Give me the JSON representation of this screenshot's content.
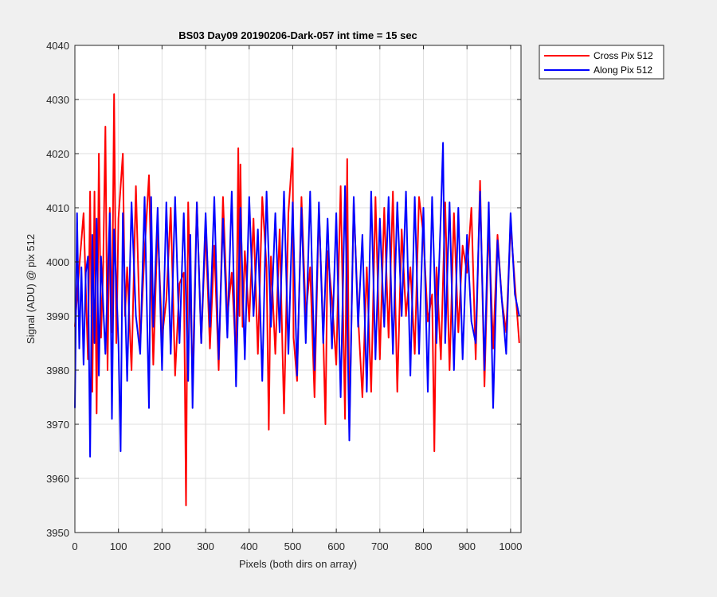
{
  "chart_data": {
    "type": "line",
    "title": "BS03 Day09 20190206-Dark-057 int time = 15 sec",
    "xlabel": "Pixels (both dirs on array)",
    "ylabel": "Signal (ADU) @ pix 512",
    "xlim": [
      0,
      1024
    ],
    "ylim": [
      3950,
      4040
    ],
    "xticks": [
      0,
      100,
      200,
      300,
      400,
      500,
      600,
      700,
      800,
      900,
      1000
    ],
    "yticks": [
      3950,
      3960,
      3970,
      3980,
      3990,
      4000,
      4010,
      4020,
      4030,
      4040
    ],
    "grid": true,
    "legend_position": "outside-top-right",
    "series": [
      {
        "name": "Cross Pix 512",
        "color": "#ff0000",
        "x": [
          0,
          10,
          20,
          30,
          35,
          40,
          45,
          50,
          55,
          60,
          65,
          70,
          75,
          80,
          85,
          90,
          95,
          100,
          110,
          115,
          120,
          130,
          140,
          150,
          160,
          170,
          180,
          190,
          200,
          210,
          220,
          230,
          240,
          250,
          252,
          255,
          258,
          260,
          270,
          280,
          290,
          300,
          310,
          320,
          330,
          340,
          350,
          360,
          370,
          375,
          378,
          380,
          385,
          390,
          400,
          410,
          420,
          430,
          440,
          445,
          450,
          460,
          470,
          480,
          490,
          500,
          502,
          510,
          520,
          530,
          540,
          550,
          560,
          570,
          575,
          580,
          590,
          600,
          610,
          620,
          625,
          630,
          640,
          650,
          660,
          670,
          680,
          690,
          700,
          710,
          720,
          730,
          740,
          750,
          760,
          770,
          780,
          790,
          800,
          810,
          820,
          825,
          830,
          840,
          850,
          860,
          870,
          880,
          890,
          900,
          910,
          920,
          930,
          940,
          950,
          960,
          970,
          980,
          990,
          1000,
          1010,
          1020
        ],
        "values": [
          3988,
          3999,
          4009,
          3982,
          4013,
          3976,
          4013,
          3972,
          4020,
          3986,
          3999,
          4025,
          3980,
          4010,
          3987,
          4031,
          3985,
          4008,
          4020,
          3990,
          3999,
          3980,
          4014,
          3985,
          4002,
          4016,
          3981,
          4007,
          3986,
          3993,
          4010,
          3979,
          3996,
          3998,
          3982,
          3955,
          3990,
          4011,
          3978,
          4011,
          3985,
          4006,
          3984,
          4003,
          3980,
          4012,
          3990,
          3998,
          3982,
          4021,
          3990,
          4018,
          3988,
          4002,
          3989,
          4008,
          3983,
          4012,
          3999,
          3969,
          4001,
          3983,
          4006,
          3972,
          4009,
          4021,
          3986,
          3978,
          4012,
          3990,
          3999,
          3975,
          4010,
          3987,
          3970,
          4002,
          3993,
          3981,
          4014,
          3971,
          4019,
          3969,
          4011,
          3990,
          3975,
          3999,
          3976,
          4012,
          3982,
          4010,
          3986,
          4013,
          3976,
          4006,
          3990,
          3999,
          3983,
          4012,
          4005,
          3989,
          3994,
          3965,
          3999,
          3982,
          4011,
          3980,
          4009,
          3987,
          4003,
          3998,
          4010,
          3982,
          4015,
          3977,
          4007,
          3984,
          4005,
          3993,
          3987,
          4007,
          3996,
          3985
        ]
      },
      {
        "name": "Along Pix 512",
        "color": "#0000ff",
        "x": [
          0,
          5,
          10,
          15,
          20,
          25,
          30,
          35,
          40,
          45,
          50,
          55,
          60,
          70,
          80,
          85,
          90,
          100,
          105,
          110,
          120,
          130,
          140,
          150,
          160,
          170,
          175,
          180,
          190,
          200,
          210,
          220,
          230,
          240,
          250,
          260,
          265,
          270,
          280,
          290,
          300,
          310,
          320,
          330,
          340,
          350,
          360,
          370,
          380,
          390,
          400,
          410,
          420,
          430,
          440,
          450,
          460,
          470,
          480,
          490,
          500,
          510,
          520,
          530,
          540,
          550,
          560,
          570,
          580,
          590,
          600,
          610,
          620,
          630,
          640,
          650,
          660,
          670,
          680,
          690,
          700,
          710,
          720,
          730,
          740,
          750,
          760,
          770,
          780,
          790,
          800,
          810,
          820,
          830,
          840,
          845,
          850,
          860,
          870,
          880,
          890,
          900,
          910,
          920,
          930,
          940,
          950,
          960,
          970,
          980,
          990,
          1000,
          1010,
          1020
        ],
        "values": [
          3973,
          4009,
          3984,
          3999,
          3981,
          3998,
          4001,
          3964,
          4005,
          3985,
          4008,
          3979,
          4001,
          3983,
          4009,
          3971,
          4006,
          3985,
          3965,
          4009,
          3978,
          4011,
          3990,
          3983,
          4012,
          3973,
          4012,
          3988,
          4010,
          3980,
          4011,
          3983,
          4012,
          3985,
          4009,
          3978,
          4005,
          3973,
          4011,
          3985,
          4009,
          3988,
          4012,
          3982,
          4008,
          3986,
          4013,
          3977,
          4010,
          3982,
          4012,
          3990,
          4006,
          3978,
          4013,
          3988,
          4009,
          3987,
          4013,
          3983,
          4011,
          3979,
          4010,
          3985,
          4013,
          3980,
          4011,
          3985,
          4008,
          3984,
          4009,
          3975,
          4014,
          3967,
          4012,
          3988,
          4005,
          3976,
          4013,
          3982,
          4008,
          3988,
          4012,
          3983,
          4011,
          3990,
          4013,
          3979,
          4012,
          3983,
          4010,
          3976,
          4012,
          3985,
          4009,
          4022,
          3985,
          4011,
          3980,
          4010,
          3982,
          4005,
          3989,
          3985,
          4013,
          3980,
          4011,
          3973,
          4004,
          3993,
          3983,
          4009,
          3994,
          3990
        ]
      }
    ]
  }
}
